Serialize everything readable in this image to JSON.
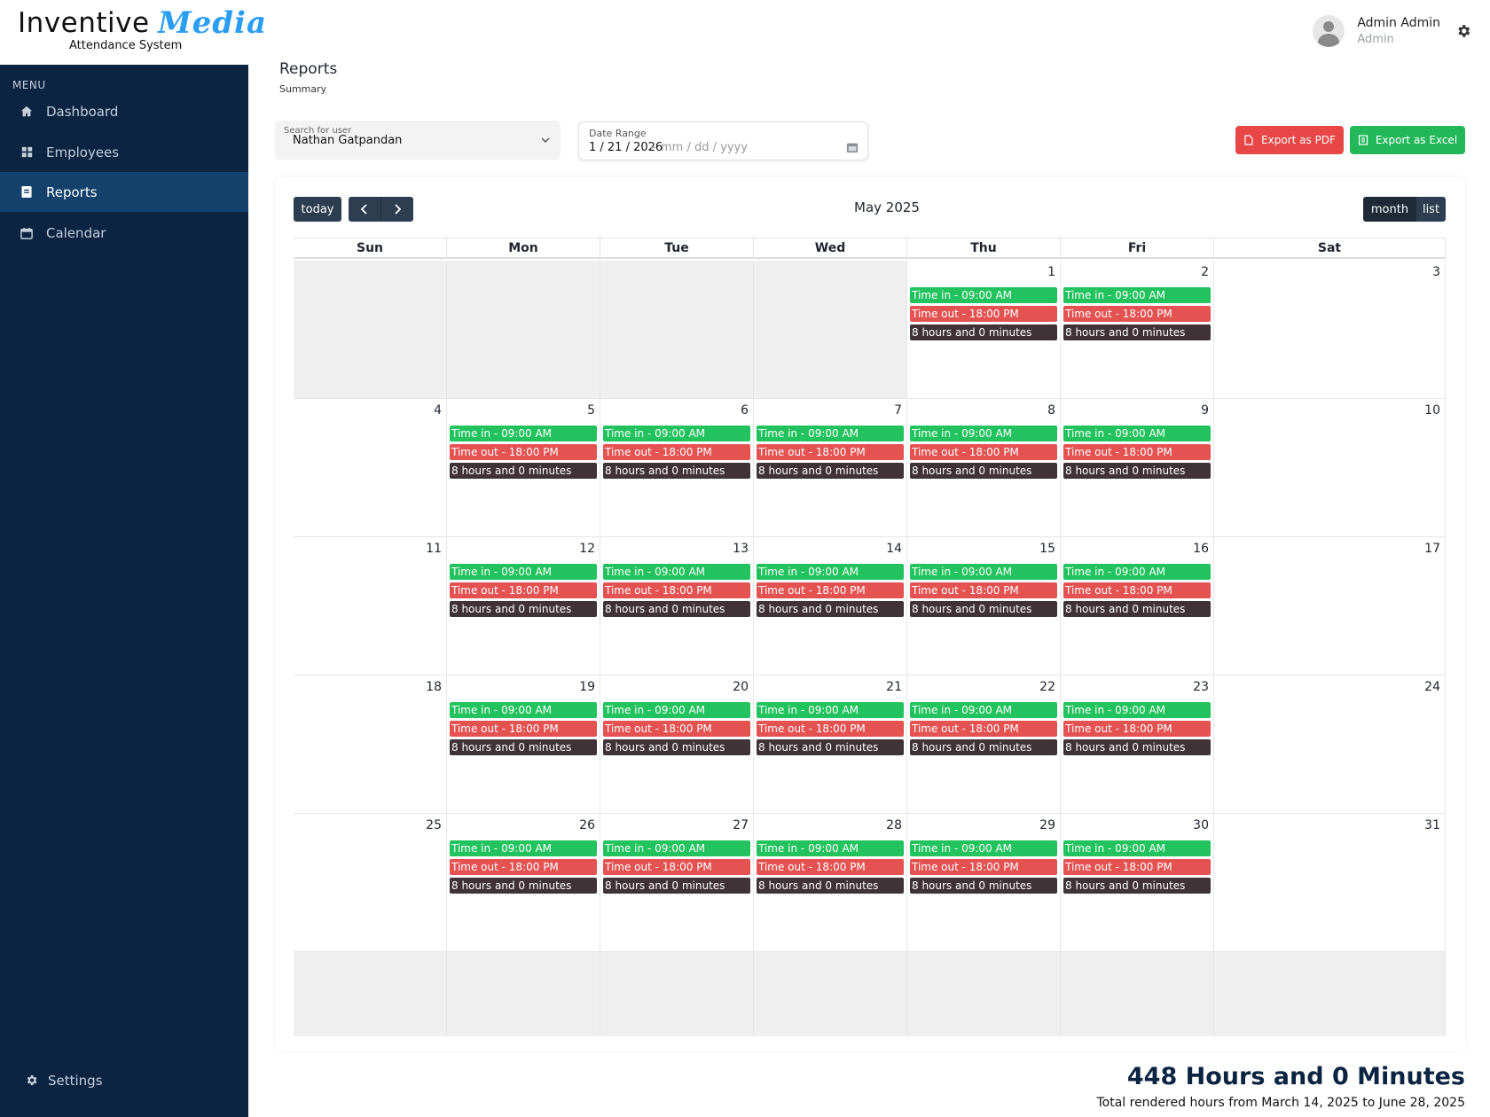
{
  "brand": {
    "word": "Inventive",
    "media": "Media",
    "subtitle": "Attendance System"
  },
  "user": {
    "name": "Admin Admin",
    "role": "Admin",
    "avatar_icon": "user-avatar-icon",
    "settings_icon": "gear-icon"
  },
  "sidebar": {
    "menu_label": "MENU",
    "items": [
      {
        "label": "Dashboard",
        "icon": "home-icon",
        "active": false
      },
      {
        "label": "Employees",
        "icon": "grid-icon",
        "active": false
      },
      {
        "label": "Reports",
        "icon": "report-icon",
        "active": true
      },
      {
        "label": "Calendar",
        "icon": "calendar-icon",
        "active": false
      }
    ],
    "settings_label": "Settings"
  },
  "page": {
    "title": "Reports",
    "subtitle": "Summary"
  },
  "filters": {
    "user_label": "Search for user",
    "user_value": "Nathan  Gatpandan",
    "date_label": "Date Range",
    "date_start": "1 / 21 / 2026",
    "date_sep": "–",
    "date_end_placeholder": "mm / dd / yyyy"
  },
  "actions": {
    "export_pdf": "Export as PDF",
    "export_excel": "Export as Excel"
  },
  "colors": {
    "sidebar": "#0b2442",
    "active": "#14426c",
    "time_in": "#22c35e",
    "time_out": "#e55252",
    "duration": "#3f3337",
    "pdf": "#e84747",
    "excel": "#22b85a"
  },
  "calendar": {
    "today_label": "today",
    "title": "May 2025",
    "views": {
      "month": "month",
      "list": "list"
    },
    "weekdays": [
      "Sun",
      "Mon",
      "Tue",
      "Wed",
      "Thu",
      "Fri",
      "Sat"
    ],
    "event_labels": {
      "in": "Time in - 09:00 AM",
      "out": "Time out - 18:00 PM",
      "duration": "8 hours and 0 minutes"
    },
    "weeks": [
      [
        {
          "d": "",
          "other": true,
          "ev": false
        },
        {
          "d": "",
          "other": true,
          "ev": false
        },
        {
          "d": "",
          "other": true,
          "ev": false
        },
        {
          "d": "",
          "other": true,
          "ev": false
        },
        {
          "d": "1",
          "other": false,
          "ev": true
        },
        {
          "d": "2",
          "other": false,
          "ev": true
        },
        {
          "d": "3",
          "other": false,
          "ev": false
        }
      ],
      [
        {
          "d": "4",
          "other": false,
          "ev": false
        },
        {
          "d": "5",
          "other": false,
          "ev": true
        },
        {
          "d": "6",
          "other": false,
          "ev": true
        },
        {
          "d": "7",
          "other": false,
          "ev": true
        },
        {
          "d": "8",
          "other": false,
          "ev": true
        },
        {
          "d": "9",
          "other": false,
          "ev": true
        },
        {
          "d": "10",
          "other": false,
          "ev": false
        }
      ],
      [
        {
          "d": "11",
          "other": false,
          "ev": false
        },
        {
          "d": "12",
          "other": false,
          "ev": true
        },
        {
          "d": "13",
          "other": false,
          "ev": true
        },
        {
          "d": "14",
          "other": false,
          "ev": true
        },
        {
          "d": "15",
          "other": false,
          "ev": true
        },
        {
          "d": "16",
          "other": false,
          "ev": true
        },
        {
          "d": "17",
          "other": false,
          "ev": false
        }
      ],
      [
        {
          "d": "18",
          "other": false,
          "ev": false
        },
        {
          "d": "19",
          "other": false,
          "ev": true
        },
        {
          "d": "20",
          "other": false,
          "ev": true
        },
        {
          "d": "21",
          "other": false,
          "ev": true
        },
        {
          "d": "22",
          "other": false,
          "ev": true
        },
        {
          "d": "23",
          "other": false,
          "ev": true
        },
        {
          "d": "24",
          "other": false,
          "ev": false
        }
      ],
      [
        {
          "d": "25",
          "other": false,
          "ev": false
        },
        {
          "d": "26",
          "other": false,
          "ev": true
        },
        {
          "d": "27",
          "other": false,
          "ev": true
        },
        {
          "d": "28",
          "other": false,
          "ev": true
        },
        {
          "d": "29",
          "other": false,
          "ev": true
        },
        {
          "d": "30",
          "other": false,
          "ev": true
        },
        {
          "d": "31",
          "other": false,
          "ev": false
        }
      ]
    ]
  },
  "totals": {
    "headline": "448 Hours and 0 Minutes",
    "caption": "Total rendered hours from March 14, 2025 to June 28, 2025"
  }
}
